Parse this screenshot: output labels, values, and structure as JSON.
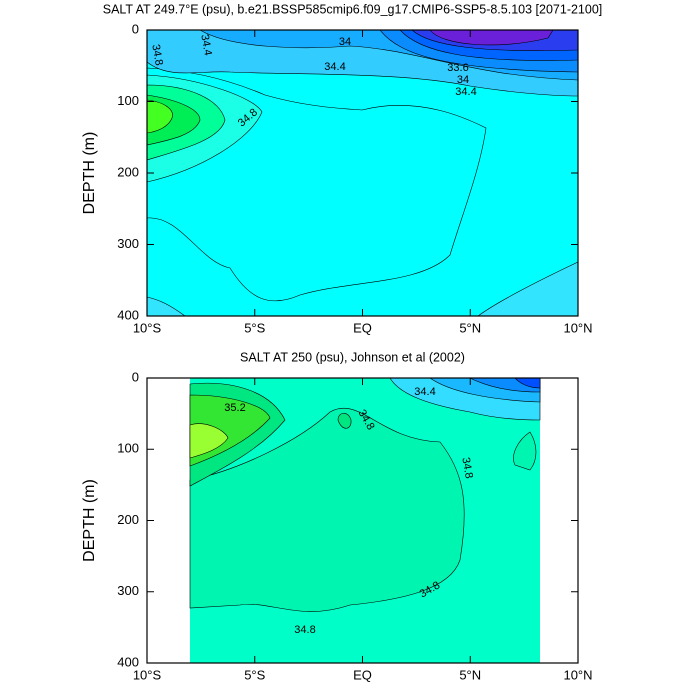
{
  "chart_data": [
    {
      "type": "contour",
      "title": "SALT AT 249.7°E (psu), b.e21.BSSP585cmip6.f09_g17.CMIP6-SSP5-8.5.103 [2071-2100]",
      "ylabel": "DEPTH (m)",
      "xlim": [
        -10,
        10
      ],
      "ylim": [
        0,
        400
      ],
      "y_inverted": true,
      "xticks": [
        {
          "value": -10,
          "label": "10°S"
        },
        {
          "value": -5,
          "label": "5°S"
        },
        {
          "value": 0,
          "label": "EQ"
        },
        {
          "value": 5,
          "label": "5°N"
        },
        {
          "value": 10,
          "label": "10°N"
        }
      ],
      "yticks": [
        0,
        100,
        200,
        300,
        400
      ],
      "contour_labels": [
        "34.8",
        "34.4",
        "34",
        "34.4",
        "33.6",
        "34",
        "34.4",
        "34.8"
      ]
    },
    {
      "type": "contour",
      "title": "SALT AT 250 (psu), Johnson et al (2002)",
      "ylabel": "DEPTH (m)",
      "xlim": [
        -10,
        10
      ],
      "ylim": [
        0,
        400
      ],
      "y_inverted": true,
      "xticks": [
        {
          "value": -10,
          "label": "10°S"
        },
        {
          "value": -5,
          "label": "5°S"
        },
        {
          "value": 0,
          "label": "EQ"
        },
        {
          "value": 5,
          "label": "5°N"
        },
        {
          "value": 10,
          "label": "10°N"
        }
      ],
      "yticks": [
        0,
        100,
        200,
        300,
        400
      ],
      "contour_labels": [
        "35.2",
        "34.8",
        "34.4",
        "34.8",
        "34.8",
        "34.8"
      ]
    }
  ]
}
